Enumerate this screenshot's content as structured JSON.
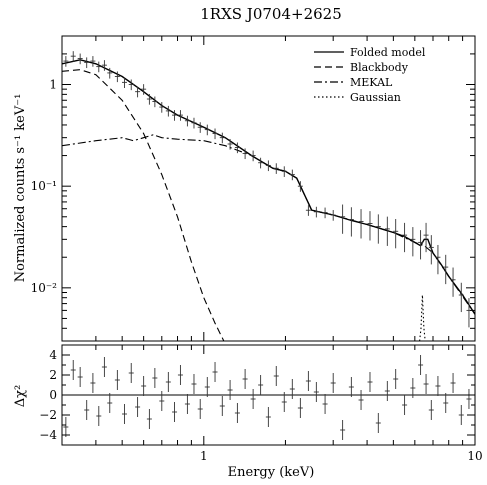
{
  "chart_data": {
    "title": "1RXS J0704+2625",
    "panels": [
      {
        "type": "line",
        "name": "spectrum",
        "ylabel": "Normalized counts s⁻¹ keV⁻¹",
        "yscale": "log",
        "xscale": "log",
        "xlim": [
          0.3,
          10
        ],
        "ylim": [
          0.003,
          3
        ],
        "yticks": [
          {
            "v": 1,
            "label": "1"
          },
          {
            "v": 0.1,
            "label": "10⁻¹"
          },
          {
            "v": 0.01,
            "label": "10⁻²"
          }
        ],
        "legend_position": "top-right",
        "series": [
          {
            "name": "Folded model",
            "style": "solid",
            "x": [
              0.3,
              0.35,
              0.4,
              0.5,
              0.6,
              0.7,
              0.8,
              1.0,
              1.2,
              1.5,
              1.8,
              2.0,
              2.2,
              2.5,
              3.0,
              3.5,
              4.0,
              5.0,
              5.5,
              6.0,
              6.3,
              6.5,
              6.7,
              7.0,
              7.5,
              8.0,
              9.0,
              10.0
            ],
            "y": [
              1.6,
              1.75,
              1.6,
              1.2,
              0.85,
              0.62,
              0.5,
              0.38,
              0.3,
              0.2,
              0.15,
              0.14,
              0.12,
              0.058,
              0.052,
              0.046,
              0.042,
              0.035,
              0.032,
              0.028,
              0.026,
              0.03,
              0.03,
              0.022,
              0.017,
              0.013,
              0.0085,
              0.0055
            ]
          },
          {
            "name": "Blackbody",
            "style": "dashed",
            "x": [
              0.3,
              0.35,
              0.4,
              0.5,
              0.6,
              0.7,
              0.8,
              0.9,
              1.0,
              1.1,
              1.2
            ],
            "y": [
              1.35,
              1.4,
              1.25,
              0.7,
              0.33,
              0.13,
              0.05,
              0.018,
              0.008,
              0.0045,
              0.0028
            ]
          },
          {
            "name": "MEKAL",
            "style": "dashdot",
            "x": [
              0.3,
              0.4,
              0.5,
              0.55,
              0.6,
              0.65,
              0.7,
              0.8,
              1.0,
              1.2,
              1.5,
              1.8,
              2.0,
              2.2,
              2.5,
              3.0,
              4.0,
              5.0,
              6.0,
              6.5,
              7.0,
              8.0,
              10.0
            ],
            "y": [
              0.25,
              0.28,
              0.3,
              0.28,
              0.3,
              0.32,
              0.3,
              0.29,
              0.28,
              0.25,
              0.2,
              0.15,
              0.14,
              0.12,
              0.058,
              0.052,
              0.042,
              0.035,
              0.028,
              0.026,
              0.022,
              0.013,
              0.0055
            ]
          },
          {
            "name": "Gaussian",
            "style": "dotted",
            "x": [
              6.25,
              6.32,
              6.4,
              6.48,
              6.55
            ],
            "y": [
              0.003,
              0.004,
              0.0085,
              0.004,
              0.003
            ]
          }
        ],
        "data_points": {
          "x": [
            0.31,
            0.33,
            0.35,
            0.37,
            0.39,
            0.41,
            0.43,
            0.45,
            0.48,
            0.51,
            0.54,
            0.57,
            0.6,
            0.63,
            0.66,
            0.7,
            0.74,
            0.78,
            0.82,
            0.87,
            0.92,
            0.97,
            1.03,
            1.1,
            1.17,
            1.25,
            1.33,
            1.42,
            1.52,
            1.62,
            1.73,
            1.85,
            1.98,
            2.12,
            2.27,
            2.43,
            2.6,
            2.8,
            3.0,
            3.25,
            3.5,
            3.8,
            4.1,
            4.4,
            4.75,
            5.1,
            5.5,
            5.9,
            6.3,
            6.6,
            6.9,
            7.3,
            7.8,
            8.3,
            8.9,
            9.5
          ],
          "y": [
            1.7,
            1.9,
            1.8,
            1.65,
            1.7,
            1.5,
            1.55,
            1.3,
            1.2,
            1.05,
            1.0,
            0.85,
            0.9,
            0.72,
            0.68,
            0.6,
            0.55,
            0.5,
            0.5,
            0.44,
            0.42,
            0.38,
            0.36,
            0.33,
            0.3,
            0.26,
            0.24,
            0.21,
            0.2,
            0.17,
            0.16,
            0.15,
            0.14,
            0.13,
            0.1,
            0.058,
            0.056,
            0.055,
            0.052,
            0.05,
            0.047,
            0.045,
            0.043,
            0.04,
            0.038,
            0.036,
            0.033,
            0.03,
            0.028,
            0.033,
            0.025,
            0.02,
            0.016,
            0.012,
            0.0085,
            0.006
          ]
        }
      },
      {
        "type": "scatter",
        "name": "residuals",
        "ylabel": "Δχ²",
        "xlabel": "Energy (keV)",
        "xscale": "log",
        "xlim": [
          0.3,
          10
        ],
        "ylim": [
          -5,
          5
        ],
        "yticks": [
          {
            "v": -4,
            "label": "−4"
          },
          {
            "v": -2,
            "label": "−2"
          },
          {
            "v": 0,
            "label": "0"
          },
          {
            "v": 2,
            "label": "2"
          },
          {
            "v": 4,
            "label": "4"
          }
        ],
        "xticks": [
          {
            "v": 1,
            "label": "1"
          },
          {
            "v": 10,
            "label": "10"
          }
        ],
        "data_points": {
          "x": [
            0.31,
            0.33,
            0.35,
            0.37,
            0.39,
            0.41,
            0.43,
            0.45,
            0.48,
            0.51,
            0.54,
            0.57,
            0.6,
            0.63,
            0.66,
            0.7,
            0.74,
            0.78,
            0.82,
            0.87,
            0.92,
            0.97,
            1.03,
            1.1,
            1.17,
            1.25,
            1.33,
            1.42,
            1.52,
            1.62,
            1.73,
            1.85,
            1.98,
            2.12,
            2.27,
            2.43,
            2.6,
            2.8,
            3.0,
            3.25,
            3.5,
            3.8,
            4.1,
            4.4,
            4.75,
            5.1,
            5.5,
            5.9,
            6.3,
            6.6,
            6.9,
            7.3,
            7.8,
            8.3,
            8.9,
            9.5
          ],
          "y": [
            -3.2,
            2.5,
            1.8,
            -1.5,
            1.2,
            -2.1,
            2.8,
            -0.8,
            1.5,
            -1.9,
            2.2,
            -1.2,
            0.9,
            -2.4,
            1.7,
            -0.6,
            1.3,
            -1.7,
            2.0,
            -0.9,
            1.1,
            -1.4,
            0.8,
            2.3,
            -1.1,
            0.5,
            -1.8,
            1.6,
            -0.4,
            1.0,
            -2.2,
            1.9,
            -0.7,
            0.6,
            -1.3,
            1.4,
            0.3,
            -0.9,
            1.2,
            -3.5,
            0.8,
            -0.5,
            1.3,
            -2.8,
            0.4,
            1.6,
            -1.0,
            0.7,
            3.0,
            1.1,
            -1.5,
            0.9,
            -0.8,
            1.2,
            -2.0,
            -0.4
          ]
        }
      }
    ]
  }
}
